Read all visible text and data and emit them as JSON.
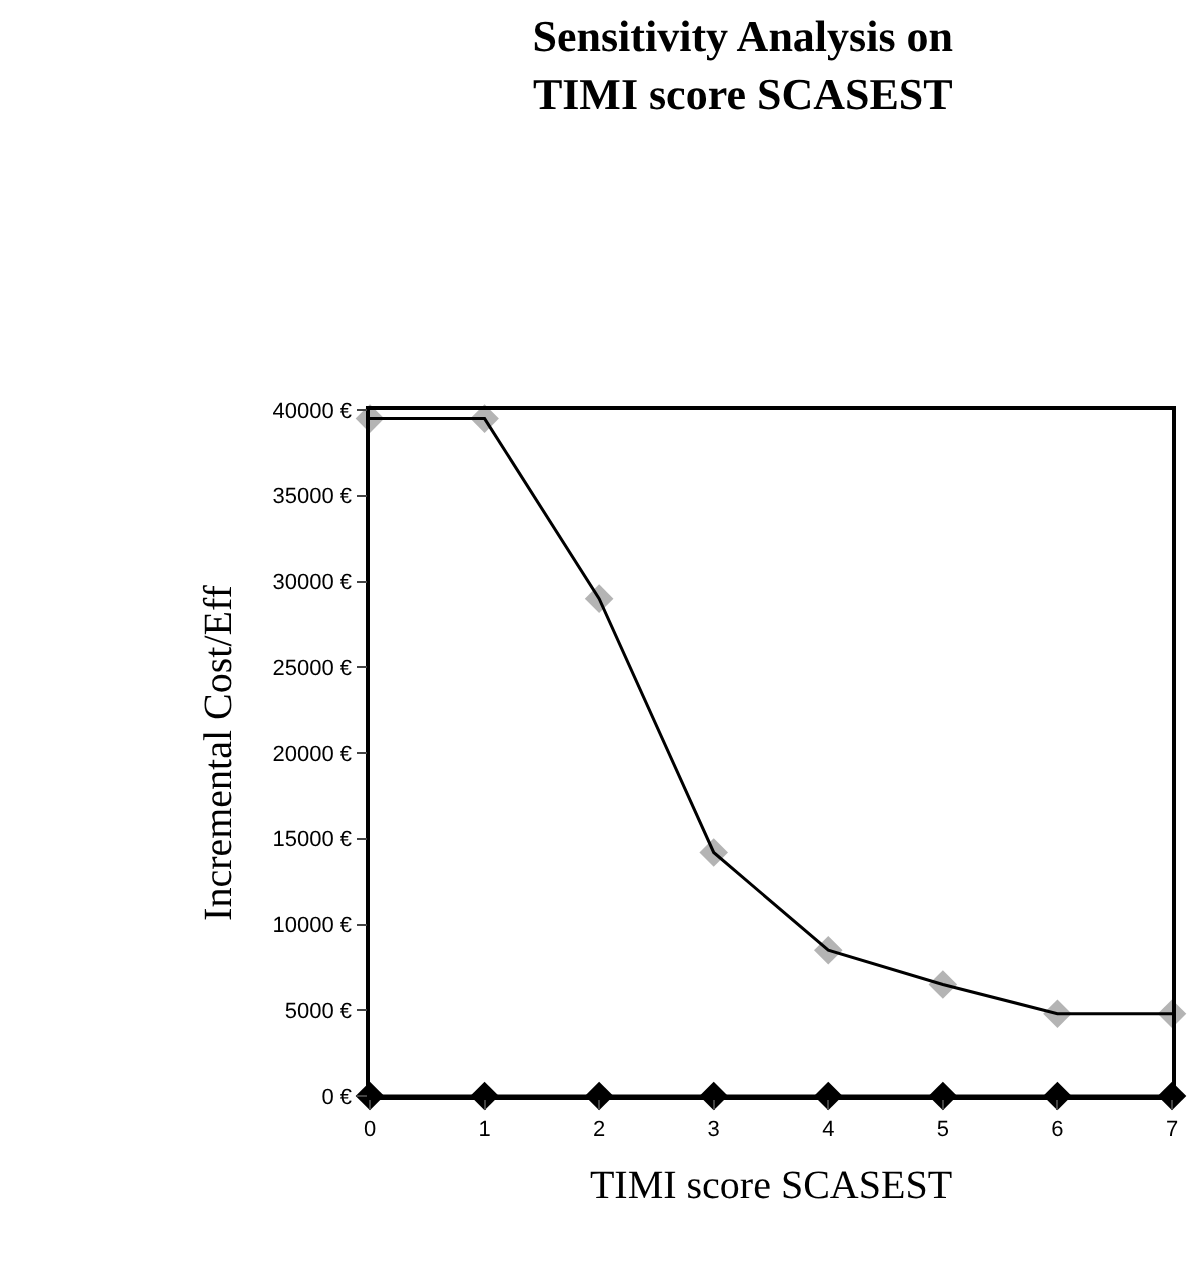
{
  "chart_data": {
    "type": "line",
    "title": "Sensitivity Analysis on\nTIMI score SCASEST",
    "xlabel": "TIMI score SCASEST",
    "ylabel": "Incremental Cost/Eff",
    "x": [
      0,
      1,
      2,
      3,
      4,
      5,
      6,
      7
    ],
    "series": [
      {
        "type": "scatter",
        "color": "#b4b4b4",
        "marker": "diamond",
        "values": [
          39500,
          39500,
          29000,
          14200,
          8500,
          6500,
          4800,
          4800
        ]
      },
      {
        "color": "#000000",
        "marker": "none",
        "values": [
          39500,
          39500,
          29000,
          14200,
          8500,
          6500,
          4800,
          4800
        ]
      },
      {
        "color": "#000000",
        "marker": "diamond",
        "values": [
          0,
          0,
          0,
          0,
          0,
          0,
          0,
          0
        ]
      }
    ],
    "xlim": [
      0,
      7
    ],
    "xticks": [
      0,
      1,
      2,
      3,
      4,
      5,
      6,
      7
    ],
    "ylim": [
      0,
      40000
    ],
    "yticks": [
      {
        "value": 0,
        "label": "0 €"
      },
      {
        "value": 5000,
        "label": "5000 €"
      },
      {
        "value": 10000,
        "label": "10000 €"
      },
      {
        "value": 15000,
        "label": "15000 €"
      },
      {
        "value": 20000,
        "label": "20000 €"
      },
      {
        "value": 25000,
        "label": "25000 €"
      },
      {
        "value": 30000,
        "label": "30000 €"
      },
      {
        "value": 35000,
        "label": "35000 €"
      },
      {
        "value": 40000,
        "label": "40000 €"
      }
    ],
    "line_style": "solid"
  }
}
